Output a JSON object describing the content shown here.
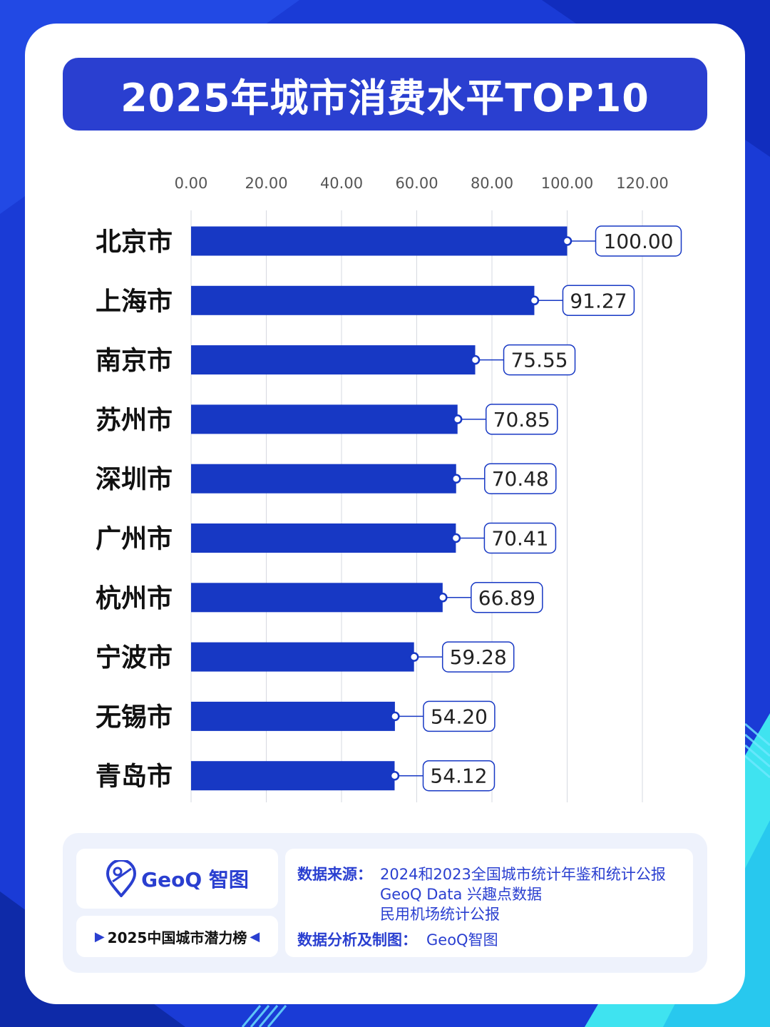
{
  "title": "2025年城市消费水平TOP10",
  "chart_data": {
    "type": "bar",
    "orientation": "horizontal",
    "categories": [
      "北京市",
      "上海市",
      "南京市",
      "苏州市",
      "深圳市",
      "广州市",
      "杭州市",
      "宁波市",
      "无锡市",
      "青岛市"
    ],
    "values": [
      100.0,
      91.27,
      75.55,
      70.85,
      70.48,
      70.41,
      66.89,
      59.28,
      54.2,
      54.12
    ],
    "value_labels": [
      "100.00",
      "91.27",
      "75.55",
      "70.85",
      "70.48",
      "70.41",
      "66.89",
      "59.28",
      "54.20",
      "54.12"
    ],
    "x_ticks": [
      "0.00",
      "20.00",
      "40.00",
      "60.00",
      "80.00",
      "100.00",
      "120.00"
    ],
    "xlim": [
      0,
      120
    ],
    "tick_position": "top",
    "grid": true,
    "bar_color": "#1738c4"
  },
  "footer": {
    "logo_text": "GeoQ 智图",
    "tag": "2025中国城市潜力榜",
    "source_label": "数据来源：",
    "sources": [
      "2024和2023全国城市统计年鉴和统计公报",
      "GeoQ Data 兴趣点数据",
      "民用机场统计公报"
    ],
    "analysis_label": "数据分析及制图：",
    "analysis_value": "GeoQ智图"
  },
  "colors": {
    "background": "#1a3bd6",
    "accent": "#2a3fd0",
    "bar": "#1738c4",
    "cyan": "#3fe3f0"
  }
}
